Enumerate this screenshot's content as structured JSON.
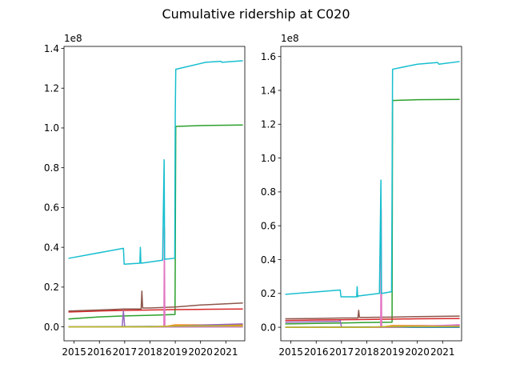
{
  "figure": {
    "title": "Cumulative ridership at C020"
  },
  "colors": [
    "#1f77b4",
    "#ff7f0e",
    "#2ca02c",
    "#d62728",
    "#9467bd",
    "#8c564b",
    "#e377c2",
    "#7f7f7f",
    "#bcbd22",
    "#17becf"
  ],
  "chart_data": [
    {
      "type": "line",
      "title": "",
      "xlabel": "",
      "ylabel": "",
      "y_offset_label": "1e8",
      "xlim": [
        2014.6,
        2021.75
      ],
      "ylim": [
        -0.07,
        1.41
      ],
      "xticks": [
        2015,
        2016,
        2017,
        2018,
        2019,
        2020,
        2021
      ],
      "yticks": [
        0.0,
        0.2,
        0.4,
        0.6,
        0.8,
        1.0,
        1.2,
        1.4
      ],
      "ytick_labels": [
        "0.0",
        "0.2",
        "0.4",
        "0.6",
        "0.8",
        "1.0",
        "1.2",
        "1.4"
      ],
      "grid": false,
      "legend": "none",
      "series": [
        {
          "color": "#1f77b4",
          "x": [
            2014.8,
            2021.65
          ],
          "y": [
            0.0,
            0.0
          ]
        },
        {
          "color": "#ff7f0e",
          "x": [
            2014.8,
            2018.5,
            2019.0,
            2021.65
          ],
          "y": [
            0.0,
            0.0,
            0.01,
            0.01
          ]
        },
        {
          "color": "#2ca02c",
          "x": [
            2014.8,
            2016.0,
            2017.0,
            2018.0,
            2018.99,
            2019.0,
            2019.02,
            2020.0,
            2021.65
          ],
          "y": [
            0.04,
            0.05,
            0.055,
            0.058,
            0.062,
            0.35,
            1.008,
            1.012,
            1.015
          ]
        },
        {
          "color": "#d62728",
          "x": [
            2014.8,
            2016.0,
            2017.0,
            2018.0,
            2019.0,
            2020.0,
            2021.65
          ],
          "y": [
            0.075,
            0.08,
            0.083,
            0.085,
            0.087,
            0.088,
            0.09
          ]
        },
        {
          "color": "#9467bd",
          "x": [
            2014.8,
            2016.9,
            2016.95,
            2017.0,
            2018.5,
            2019.0,
            2021.65
          ],
          "y": [
            0.0,
            0.0,
            0.08,
            0.0,
            0.0,
            0.005,
            0.015
          ]
        },
        {
          "color": "#8c564b",
          "x": [
            2014.8,
            2016.0,
            2017.0,
            2017.65,
            2017.68,
            2017.71,
            2018.0,
            2019.0,
            2020.0,
            2021.65
          ],
          "y": [
            0.08,
            0.085,
            0.09,
            0.09,
            0.18,
            0.095,
            0.095,
            0.1,
            0.11,
            0.12
          ]
        },
        {
          "color": "#e377c2",
          "x": [
            2014.8,
            2018.55,
            2018.57,
            2018.59,
            2019.0,
            2021.65
          ],
          "y": [
            0.0,
            0.0,
            0.5,
            0.0,
            0.0,
            0.0
          ]
        },
        {
          "color": "#7f7f7f",
          "x": [
            2014.8,
            2021.65
          ],
          "y": [
            0.0,
            0.005
          ]
        },
        {
          "color": "#bcbd22",
          "x": [
            2014.8,
            2018.0,
            2019.0,
            2021.65
          ],
          "y": [
            0.0,
            0.0,
            0.005,
            0.005
          ]
        },
        {
          "color": "#17becf",
          "x": [
            2014.8,
            2016.95,
            2016.98,
            2017.6,
            2017.62,
            2017.64,
            2017.66,
            2018.5,
            2018.56,
            2018.58,
            2018.6,
            2018.98,
            2019.0,
            2019.02,
            2020.2,
            2020.8,
            2020.85,
            2021.65
          ],
          "y": [
            0.345,
            0.395,
            0.315,
            0.32,
            0.4,
            0.32,
            0.32,
            0.335,
            0.84,
            0.34,
            0.34,
            0.345,
            1.07,
            1.295,
            1.33,
            1.335,
            1.33,
            1.338
          ]
        }
      ]
    },
    {
      "type": "line",
      "title": "",
      "xlabel": "",
      "ylabel": "",
      "y_offset_label": "1e8",
      "xlim": [
        2014.6,
        2021.75
      ],
      "ylim": [
        -0.08,
        1.66
      ],
      "xticks": [
        2015,
        2016,
        2017,
        2018,
        2019,
        2020,
        2021
      ],
      "yticks": [
        0.0,
        0.2,
        0.4,
        0.6,
        0.8,
        1.0,
        1.2,
        1.4,
        1.6
      ],
      "ytick_labels": [
        "0.0",
        "0.2",
        "0.4",
        "0.6",
        "0.8",
        "1.0",
        "1.2",
        "1.4",
        "1.6"
      ],
      "grid": false,
      "legend": "none",
      "series": [
        {
          "color": "#1f77b4",
          "x": [
            2014.8,
            2021.65
          ],
          "y": [
            0.0,
            0.0
          ]
        },
        {
          "color": "#ff7f0e",
          "x": [
            2014.8,
            2018.5,
            2019.0,
            2021.65
          ],
          "y": [
            0.0,
            0.0,
            0.01,
            0.01
          ]
        },
        {
          "color": "#2ca02c",
          "x": [
            2014.8,
            2017.0,
            2018.0,
            2019.0,
            2019.02,
            2020.0,
            2021.65
          ],
          "y": [
            0.02,
            0.025,
            0.028,
            0.03,
            1.34,
            1.345,
            1.347
          ]
        },
        {
          "color": "#d62728",
          "x": [
            2014.8,
            2016.0,
            2018.0,
            2020.0,
            2021.65
          ],
          "y": [
            0.04,
            0.043,
            0.046,
            0.05,
            0.052
          ]
        },
        {
          "color": "#9467bd",
          "x": [
            2014.8,
            2016.9,
            2016.95,
            2017.0,
            2018.5,
            2019.0,
            2021.65
          ],
          "y": [
            0.03,
            0.035,
            0.04,
            0.0,
            0.0,
            0.005,
            0.01
          ]
        },
        {
          "color": "#8c564b",
          "x": [
            2014.8,
            2016.0,
            2017.0,
            2017.65,
            2017.68,
            2017.71,
            2018.0,
            2019.0,
            2020.0,
            2021.65
          ],
          "y": [
            0.05,
            0.052,
            0.055,
            0.055,
            0.1,
            0.058,
            0.058,
            0.06,
            0.063,
            0.066
          ]
        },
        {
          "color": "#e377c2",
          "x": [
            2014.8,
            2018.55,
            2018.57,
            2018.59,
            2019.0,
            2020.0,
            2021.65
          ],
          "y": [
            0.0,
            0.0,
            0.7,
            0.0,
            0.0,
            0.005,
            0.015
          ]
        },
        {
          "color": "#7f7f7f",
          "x": [
            2014.8,
            2021.65
          ],
          "y": [
            0.0,
            0.005
          ]
        },
        {
          "color": "#bcbd22",
          "x": [
            2014.8,
            2018.0,
            2019.0,
            2021.65
          ],
          "y": [
            0.0,
            0.0,
            0.005,
            0.005
          ]
        },
        {
          "color": "#17becf",
          "x": [
            2014.8,
            2016.95,
            2016.98,
            2017.6,
            2017.62,
            2017.64,
            2017.66,
            2018.5,
            2018.56,
            2018.58,
            2018.6,
            2018.98,
            2019.0,
            2019.02,
            2020.0,
            2020.8,
            2020.85,
            2021.65
          ],
          "y": [
            0.195,
            0.22,
            0.18,
            0.18,
            0.24,
            0.18,
            0.185,
            0.2,
            0.87,
            0.2,
            0.2,
            0.21,
            0.8,
            1.525,
            1.555,
            1.565,
            1.555,
            1.57
          ]
        }
      ]
    }
  ]
}
